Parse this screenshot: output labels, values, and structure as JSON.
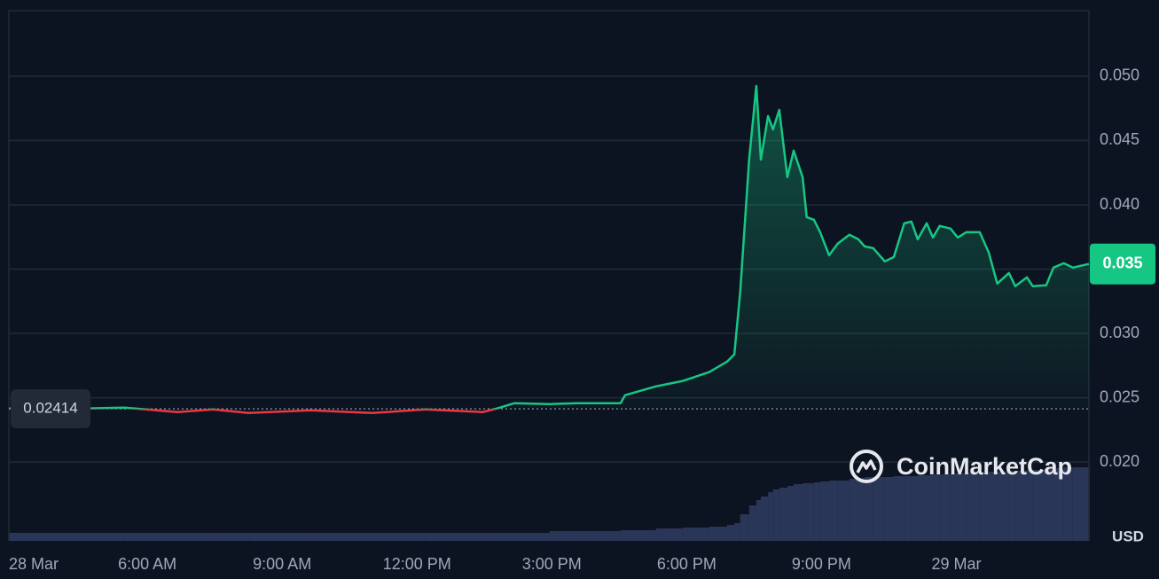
{
  "chart_data": {
    "type": "line",
    "x": [
      2.92,
      3.71,
      5.49,
      6.67,
      7.46,
      8.25,
      9.63,
      11.01,
      12.19,
      13.47,
      13.77,
      14.17,
      14.95,
      15.55,
      16.53,
      16.63,
      17.32,
      17.91,
      18.5,
      18.9,
      19.06,
      19.19,
      19.39,
      19.55,
      19.65,
      19.81,
      19.92,
      20.06,
      20.24,
      20.38,
      20.58,
      20.67,
      20.83,
      20.97,
      21.17,
      21.36,
      21.62,
      21.82,
      21.96,
      22.15,
      22.41,
      22.61,
      22.84,
      23.0,
      23.14,
      23.34,
      23.48,
      23.63,
      23.87,
      24.03,
      24.22,
      24.52,
      24.72,
      24.91,
      25.17,
      25.31,
      25.57,
      25.7,
      26.0,
      26.16,
      26.39,
      26.59,
      26.95
    ],
    "values": [
      0.02416,
      0.02409,
      0.02423,
      0.02389,
      0.02409,
      0.02382,
      0.02402,
      0.02382,
      0.02409,
      0.02389,
      0.02416,
      0.02458,
      0.02451,
      0.02458,
      0.02458,
      0.0252,
      0.02589,
      0.0263,
      0.02699,
      0.02781,
      0.02837,
      0.03319,
      0.04352,
      0.04924,
      0.04352,
      0.0469,
      0.04587,
      0.04738,
      0.04215,
      0.04421,
      0.04215,
      0.03904,
      0.03884,
      0.03787,
      0.03608,
      0.03698,
      0.03767,
      0.03732,
      0.03677,
      0.03663,
      0.0356,
      0.03594,
      0.03856,
      0.0387,
      0.03732,
      0.03856,
      0.03746,
      0.03836,
      0.03815,
      0.03746,
      0.03787,
      0.03787,
      0.03629,
      0.03388,
      0.0347,
      0.03367,
      0.03436,
      0.03367,
      0.03374,
      0.03512,
      0.03546,
      0.03512,
      0.0354
    ],
    "volume": [
      9,
      9,
      9,
      9,
      9,
      9,
      9,
      9,
      9,
      9,
      9,
      9,
      11,
      11,
      12,
      12,
      14,
      15,
      16,
      18,
      20,
      30,
      40,
      46,
      50,
      55,
      58,
      60,
      62,
      64,
      65,
      65,
      66,
      67,
      68,
      68,
      70,
      71,
      72,
      72,
      72,
      73,
      73,
      73,
      74,
      74,
      75,
      75,
      76,
      76,
      77,
      77,
      78,
      78,
      79,
      79,
      80,
      80,
      81,
      82,
      83,
      83,
      84
    ],
    "vlim": [
      0,
      100
    ],
    "baseline": 0.02414,
    "current": {
      "value": 0.0354,
      "label": "0.035"
    },
    "xlim": [
      2.92,
      26.95
    ],
    "ylim": [
      0.01387,
      0.0551
    ],
    "yticks": [
      {
        "value": 0.02,
        "label": "0.020"
      },
      0.025,
      {
        "value": 0.03,
        "label": "0.030"
      },
      0.035,
      {
        "value": 0.04,
        "label": "0.040"
      },
      0.045,
      {
        "value": 0.05,
        "label": "0.050"
      }
    ],
    "xticks": [
      {
        "value": 3,
        "label": "28 Mar"
      },
      {
        "value": 6,
        "label": "6:00 AM"
      },
      {
        "value": 9,
        "label": "9:00 AM"
      },
      {
        "value": 12,
        "label": "12:00 PM"
      },
      {
        "value": 15,
        "label": "3:00 PM"
      },
      {
        "value": 18,
        "label": "6:00 PM"
      },
      {
        "value": 21,
        "label": "9:00 PM"
      },
      {
        "value": 24,
        "label": "29 Mar"
      }
    ],
    "unit": "USD",
    "watermark": "CoinMarketCap",
    "grid": true,
    "up_color": "#16c784",
    "down_color": "#ea3943",
    "volume_color": "#2a3658"
  }
}
